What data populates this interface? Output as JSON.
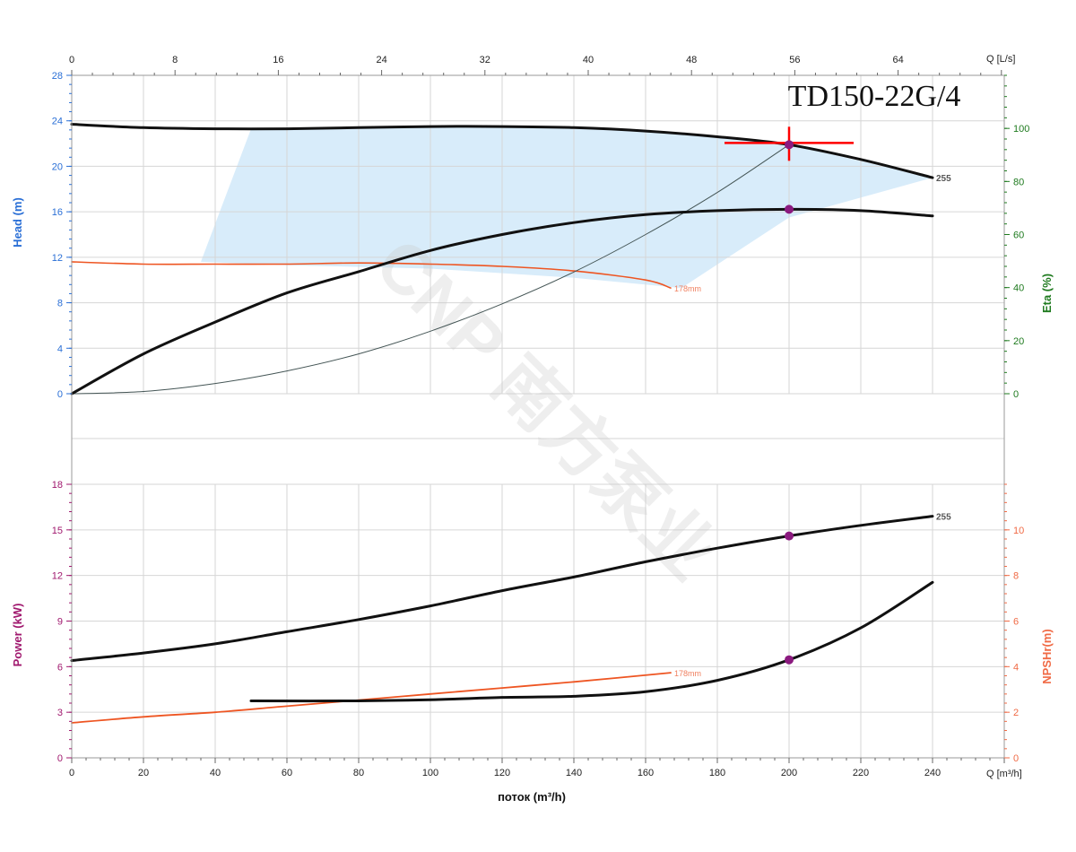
{
  "chart_data": {
    "type": "line",
    "title": "TD150-22G/4",
    "xlabel": "поток (m³/h)",
    "x_unit_label": "Q [m³/h]",
    "x_top_unit_label": "Q [L/s]",
    "xlim": [
      0,
      260
    ],
    "x_ticks": [
      0,
      20,
      40,
      60,
      80,
      100,
      120,
      140,
      160,
      180,
      200,
      220,
      240
    ],
    "x_top_ticks": [
      0,
      8,
      16,
      24,
      32,
      40,
      48,
      56,
      64
    ],
    "watermark": "CNP 南方泵业",
    "colors": {
      "head_axis": "#2a6fd6",
      "eta_axis": "#1e7a1e",
      "power_axis": "#a0186e",
      "npsh_axis": "#f06a45",
      "main_curve": "#111111",
      "diameter_curve": "#ee5522",
      "system_curve": "#445555",
      "region_fill": "#d8ecfa",
      "duty_marker": "#ff0000",
      "point_marker": "#8b1a7f"
    },
    "panels": [
      {
        "name": "head_eta",
        "left_axis": {
          "label": "Head (m)",
          "ylim": [
            0,
            28
          ],
          "ticks": [
            0,
            4,
            8,
            12,
            16,
            20,
            24,
            28
          ]
        },
        "right_axis": {
          "label": "Eta (%)",
          "ylim": [
            0,
            120
          ],
          "ticks": [
            0,
            20,
            40,
            60,
            80,
            100
          ]
        },
        "series": [
          {
            "role": "head_255",
            "axis": "left",
            "label": "255",
            "x": [
              0,
              20,
              40,
              60,
              80,
              100,
              120,
              140,
              160,
              180,
              200,
              220,
              240
            ],
            "y": [
              23.7,
              23.4,
              23.3,
              23.3,
              23.4,
              23.5,
              23.5,
              23.4,
              23.1,
              22.6,
              21.9,
              20.6,
              19.0
            ]
          },
          {
            "role": "head_178",
            "axis": "left",
            "label": "178mm",
            "x": [
              0,
              20,
              40,
              60,
              80,
              100,
              120,
              140,
              160,
              167
            ],
            "y": [
              11.6,
              11.4,
              11.4,
              11.4,
              11.5,
              11.4,
              11.2,
              10.8,
              10.0,
              9.3
            ]
          },
          {
            "role": "system_curve",
            "axis": "left",
            "x": [
              0,
              20,
              40,
              60,
              80,
              100,
              120,
              140,
              160,
              180,
              200
            ],
            "y": [
              0,
              0.2,
              0.9,
              2.0,
              3.5,
              5.5,
              7.9,
              10.7,
              14.0,
              17.7,
              21.9
            ]
          },
          {
            "role": "efficiency",
            "axis": "right",
            "x": [
              0,
              20,
              40,
              60,
              80,
              100,
              120,
              140,
              160,
              180,
              200,
              220,
              240
            ],
            "y": [
              0,
              15,
              27,
              38,
              46,
              54,
              60,
              64.5,
              67.5,
              69,
              69.5,
              69,
              67
            ]
          }
        ],
        "region": {
          "x": [
            36,
            50,
            80,
            120,
            160,
            200,
            240,
            200,
            170,
            140,
            100,
            60,
            36
          ],
          "y": [
            11.6,
            23.3,
            23.4,
            23.5,
            23.1,
            21.9,
            19.0,
            15.5,
            9.3,
            10.2,
            11.0,
            11.3,
            11.6
          ]
        },
        "duty_point": {
          "x": 200,
          "y": 21.9
        },
        "operating_points": [
          {
            "x": 200,
            "y": 21.9,
            "axis": "left"
          },
          {
            "x": 200,
            "y": 69.5,
            "axis": "right"
          }
        ]
      },
      {
        "name": "power_npsh",
        "left_axis": {
          "label": "Power (kW)",
          "ylim": [
            0,
            18
          ],
          "ticks": [
            0,
            3,
            6,
            9,
            12,
            15,
            18
          ]
        },
        "right_axis": {
          "label": "NPSHr(m)",
          "ylim": [
            0,
            12
          ],
          "ticks": [
            0,
            2,
            4,
            6,
            8,
            10
          ]
        },
        "series": [
          {
            "role": "power_255",
            "axis": "left",
            "label": "255",
            "x": [
              0,
              20,
              40,
              60,
              80,
              100,
              120,
              140,
              160,
              180,
              200,
              220,
              240
            ],
            "y": [
              6.4,
              6.9,
              7.5,
              8.3,
              9.1,
              10.0,
              11.0,
              11.9,
              12.9,
              13.8,
              14.6,
              15.3,
              15.9
            ]
          },
          {
            "role": "power_178",
            "axis": "left",
            "label": "178mm",
            "x": [
              0,
              20,
              40,
              60,
              80,
              100,
              120,
              140,
              167
            ],
            "y": [
              2.3,
              2.7,
              3.0,
              3.4,
              3.8,
              4.2,
              4.6,
              5.0,
              5.6
            ]
          },
          {
            "role": "npshr",
            "axis": "right",
            "x": [
              50,
              80,
              100,
              120,
              140,
              160,
              180,
              200,
              220,
              240
            ],
            "y": [
              2.5,
              2.5,
              2.55,
              2.65,
              2.7,
              2.9,
              3.4,
              4.3,
              5.7,
              7.7
            ]
          }
        ],
        "operating_points": [
          {
            "x": 200,
            "y": 14.6,
            "axis": "left"
          },
          {
            "x": 200,
            "y": 4.3,
            "axis": "right"
          }
        ]
      }
    ]
  }
}
